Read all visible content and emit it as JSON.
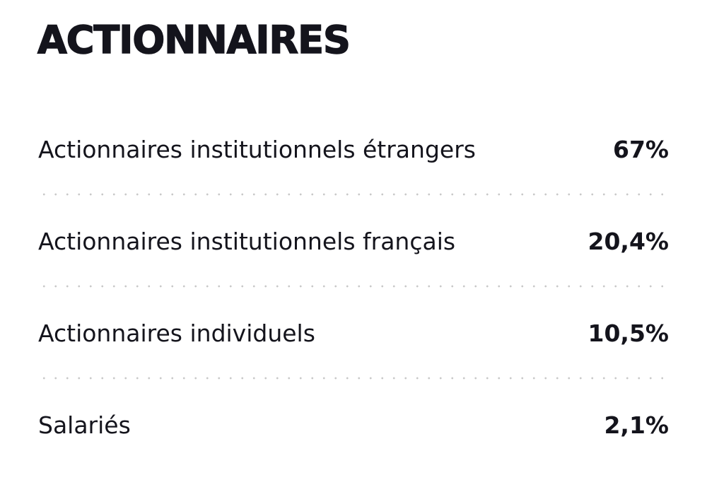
{
  "header": {
    "title": "ACTIONNAIRES"
  },
  "table": {
    "rows": [
      [
        "Actionnaires institutionnels étrangers",
        "67%"
      ],
      [
        "Actionnaires institutionnels français",
        "20,4%"
      ],
      [
        "Actionnaires individuels",
        "10,5%"
      ],
      [
        "Salariés",
        "2,1%"
      ]
    ]
  }
}
